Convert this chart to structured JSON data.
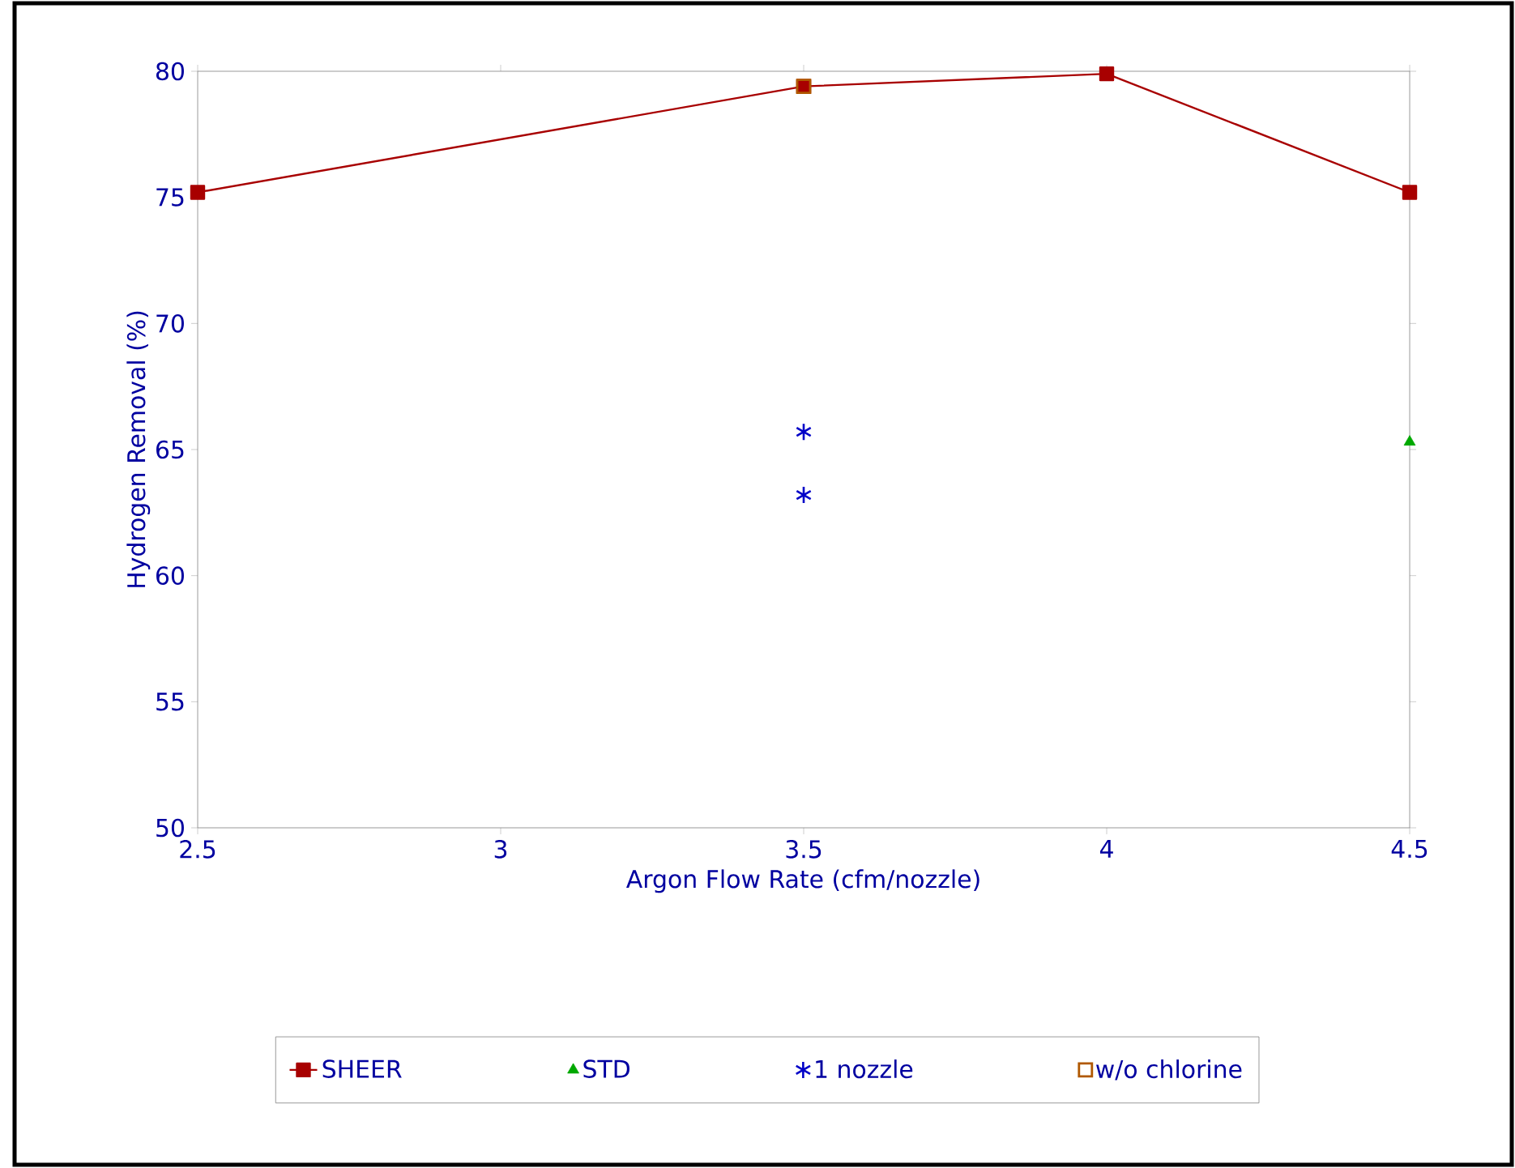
{
  "chart_data": {
    "type": "scatter",
    "xlabel": "Argon Flow Rate (cfm/nozzle)",
    "ylabel": "Hydrogen Removal (%)",
    "xlim": [
      2.5,
      4.5
    ],
    "xticks": [
      2.5,
      3,
      3.5,
      4,
      4.5
    ],
    "ylim": [
      50,
      80
    ],
    "yticks": [
      50,
      55,
      60,
      65,
      70,
      75,
      80
    ],
    "grid": false,
    "legend": "bottom",
    "series": [
      {
        "name": "SHEER",
        "type": "line",
        "marker": "square",
        "color": "#a80000",
        "x": [
          2.5,
          3.5,
          4,
          4.5
        ],
        "values": [
          75.2,
          79.4,
          79.9,
          75.2
        ]
      },
      {
        "name": "STD",
        "marker": "triangle",
        "color": "#00a800",
        "x": [
          4.5
        ],
        "values": [
          65.3
        ]
      },
      {
        "name": "1 nozzle",
        "marker": "cross",
        "color": "#0000c8",
        "x": [
          3.5,
          3.5
        ],
        "values": [
          65.7,
          63.2
        ]
      },
      {
        "name": "w/o chlorine",
        "marker": "square",
        "color": "#b05800",
        "x": [
          3.5
        ],
        "values": [
          79.4
        ]
      }
    ]
  }
}
